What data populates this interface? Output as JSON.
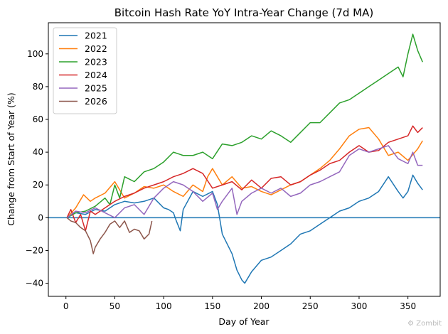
{
  "chart_data": {
    "type": "line",
    "title": "Bitcoin Hash Rate YoY Intra-Year Change (7d MA)",
    "xlabel": "Day of Year",
    "ylabel": "Change from Start of Year (%)",
    "xlim": [
      -18,
      383
    ],
    "ylim": [
      -48,
      119
    ],
    "xticks": [
      0,
      50,
      100,
      150,
      200,
      250,
      300,
      350
    ],
    "yticks": [
      -40,
      -20,
      0,
      20,
      40,
      60,
      80,
      100
    ],
    "grid": false,
    "legend": "top-left",
    "baseline": 0,
    "colors": {
      "2021": "#1f77b4",
      "2022": "#ff7f0e",
      "2023": "#2ca02c",
      "2024": "#d62728",
      "2025": "#9467bd",
      "2026": "#8c564b",
      "baseline": "#1f77b4"
    },
    "series": [
      {
        "name": "2021",
        "x": [
          1,
          10,
          20,
          30,
          40,
          50,
          60,
          70,
          80,
          90,
          95,
          100,
          105,
          110,
          113,
          117,
          120,
          130,
          140,
          150,
          155,
          160,
          170,
          175,
          180,
          183,
          190,
          200,
          210,
          220,
          230,
          240,
          250,
          260,
          270,
          280,
          290,
          300,
          310,
          320,
          330,
          340,
          345,
          350,
          355,
          360,
          365
        ],
        "y": [
          0,
          3,
          2,
          5,
          4,
          8,
          10,
          9,
          10,
          12,
          9,
          6,
          5,
          3,
          -2,
          -8,
          5,
          16,
          13,
          16,
          8,
          -10,
          -22,
          -32,
          -38,
          -40,
          -33,
          -26,
          -24,
          -20,
          -16,
          -10,
          -8,
          -4,
          0,
          4,
          6,
          10,
          12,
          16,
          25,
          16,
          12,
          16,
          26,
          21,
          17
        ]
      },
      {
        "name": "2022",
        "x": [
          1,
          10,
          18,
          25,
          30,
          40,
          50,
          60,
          70,
          80,
          90,
          100,
          110,
          120,
          130,
          140,
          145,
          150,
          160,
          170,
          180,
          190,
          200,
          210,
          220,
          230,
          240,
          250,
          260,
          270,
          280,
          290,
          300,
          310,
          320,
          330,
          340,
          350,
          360,
          365
        ],
        "y": [
          0,
          6,
          14,
          10,
          12,
          15,
          22,
          12,
          15,
          19,
          18,
          20,
          16,
          13,
          20,
          16,
          25,
          30,
          20,
          25,
          18,
          19,
          16,
          14,
          17,
          20,
          22,
          26,
          30,
          35,
          42,
          50,
          54,
          55,
          48,
          38,
          40,
          35,
          42,
          47
        ]
      },
      {
        "name": "2023",
        "x": [
          1,
          10,
          20,
          30,
          40,
          45,
          50,
          55,
          60,
          70,
          80,
          90,
          100,
          110,
          120,
          130,
          140,
          150,
          160,
          170,
          180,
          190,
          200,
          210,
          220,
          230,
          240,
          250,
          260,
          270,
          280,
          290,
          300,
          310,
          320,
          330,
          340,
          345,
          350,
          355,
          360,
          365
        ],
        "y": [
          0,
          3,
          4,
          7,
          12,
          8,
          20,
          12,
          25,
          22,
          28,
          30,
          34,
          40,
          38,
          38,
          40,
          36,
          45,
          44,
          46,
          50,
          48,
          53,
          50,
          46,
          52,
          58,
          58,
          64,
          70,
          72,
          76,
          80,
          84,
          88,
          92,
          86,
          100,
          112,
          102,
          95
        ]
      },
      {
        "name": "2024",
        "x": [
          1,
          5,
          10,
          15,
          20,
          25,
          30,
          40,
          50,
          60,
          70,
          80,
          90,
          100,
          110,
          120,
          130,
          140,
          150,
          160,
          170,
          180,
          190,
          200,
          210,
          220,
          230,
          240,
          250,
          260,
          270,
          280,
          290,
          300,
          310,
          320,
          330,
          340,
          350,
          355,
          360,
          365
        ],
        "y": [
          0,
          5,
          -3,
          2,
          -8,
          4,
          2,
          6,
          10,
          13,
          15,
          18,
          20,
          22,
          25,
          27,
          30,
          27,
          18,
          20,
          22,
          17,
          23,
          18,
          24,
          25,
          20,
          22,
          26,
          29,
          33,
          35,
          40,
          44,
          40,
          41,
          46,
          48,
          50,
          56,
          52,
          55
        ]
      },
      {
        "name": "2025",
        "x": [
          1,
          10,
          20,
          30,
          40,
          50,
          60,
          70,
          80,
          90,
          100,
          110,
          120,
          130,
          140,
          150,
          155,
          160,
          170,
          175,
          180,
          190,
          200,
          210,
          220,
          230,
          240,
          250,
          260,
          270,
          280,
          290,
          300,
          310,
          320,
          330,
          340,
          350,
          355,
          360,
          365
        ],
        "y": [
          0,
          4,
          3,
          6,
          3,
          0,
          6,
          8,
          2,
          12,
          18,
          22,
          20,
          16,
          10,
          15,
          5,
          10,
          18,
          2,
          10,
          15,
          18,
          15,
          18,
          13,
          15,
          20,
          22,
          25,
          28,
          38,
          42,
          40,
          42,
          44,
          36,
          33,
          40,
          32,
          32
        ]
      },
      {
        "name": "2026",
        "x": [
          1,
          5,
          10,
          15,
          20,
          25,
          28,
          30,
          35,
          40,
          45,
          50,
          55,
          60,
          65,
          70,
          75,
          80,
          85,
          88
        ],
        "y": [
          0,
          -2,
          -3,
          -6,
          -8,
          -14,
          -22,
          -18,
          -13,
          -9,
          -4,
          -2,
          -6,
          -2,
          -9,
          -7,
          -8,
          -13,
          -10,
          -2
        ]
      }
    ]
  },
  "watermark": "⚙ Zombit"
}
